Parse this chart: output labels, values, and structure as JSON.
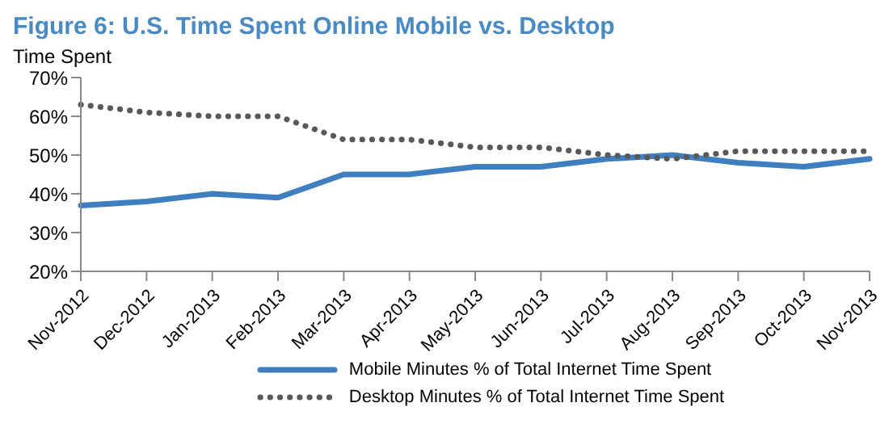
{
  "chart_data": {
    "type": "line",
    "title": "Figure 6: U.S. Time Spent Online Mobile vs. Desktop",
    "ylabel": "Time Spent",
    "categories": [
      "Nov-2012",
      "Dec-2012",
      "Jan-2013",
      "Feb-2013",
      "Mar-2013",
      "Apr-2013",
      "May-2013",
      "Jun-2013",
      "Jul-2013",
      "Aug-2013",
      "Sep-2013",
      "Oct-2013",
      "Nov-2013"
    ],
    "series": [
      {
        "name": "Mobile Minutes % of Total Internet Time Spent",
        "color": "#3f7fbf",
        "line_style": "solid",
        "values": [
          37,
          38,
          40,
          39,
          45,
          45,
          47,
          47,
          49,
          50,
          48,
          47,
          49
        ]
      },
      {
        "name": "Desktop Minutes % of Total Internet Time Spent",
        "color": "#595959",
        "line_style": "dotted",
        "values": [
          63,
          61,
          60,
          60,
          54,
          54,
          52,
          52,
          50,
          49,
          51,
          51,
          51
        ]
      }
    ],
    "ylim": [
      20,
      70
    ],
    "yticks": [
      {
        "value": 20,
        "label": "20%"
      },
      {
        "value": 30,
        "label": "30%"
      },
      {
        "value": 40,
        "label": "40%"
      },
      {
        "value": 50,
        "label": "50%"
      },
      {
        "value": 60,
        "label": "60%"
      },
      {
        "value": 70,
        "label": "70%"
      }
    ],
    "grid": false,
    "legend": "bottom",
    "marker": "none"
  }
}
